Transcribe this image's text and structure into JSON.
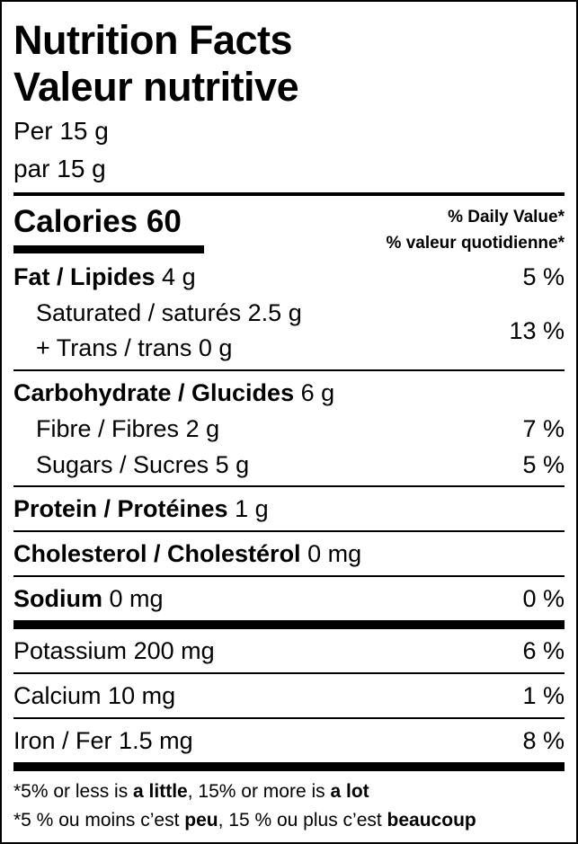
{
  "header": {
    "title_en": "Nutrition Facts",
    "title_fr": "Valeur nutritive",
    "serving_en": "Per 15 g",
    "serving_fr": "par 15 g"
  },
  "calories": {
    "label": "Calories",
    "value": "60"
  },
  "daily_value": {
    "en": "% Daily Value*",
    "fr": "% valeur quotidienne*"
  },
  "nutrients": {
    "fat": {
      "label": "Fat / Lipides",
      "amount": "4 g",
      "dv": "5 %"
    },
    "saturated": {
      "label": "Saturated / saturés",
      "amount": "2.5 g"
    },
    "trans": {
      "label": "+ Trans / trans",
      "amount": "0 g",
      "dv": "13 %"
    },
    "carbohydrate": {
      "label": "Carbohydrate / Glucides",
      "amount": "6 g"
    },
    "fibre": {
      "label": "Fibre / Fibres",
      "amount": "2 g",
      "dv": "7 %"
    },
    "sugars": {
      "label": "Sugars / Sucres",
      "amount": "5 g",
      "dv": "5 %"
    },
    "protein": {
      "label": "Protein / Protéines",
      "amount": "1 g"
    },
    "cholesterol": {
      "label": "Cholesterol / Cholestérol",
      "amount": "0 mg"
    },
    "sodium": {
      "label": "Sodium",
      "amount": "0 mg",
      "dv": "0 %"
    },
    "potassium": {
      "label": "Potassium",
      "amount": "200 mg",
      "dv": "6 %"
    },
    "calcium": {
      "label": "Calcium",
      "amount": "10 mg",
      "dv": "1 %"
    },
    "iron": {
      "label": "Iron / Fer",
      "amount": "1.5 mg",
      "dv": "8 %"
    }
  },
  "footnote": {
    "en_1": "*5% or less is ",
    "en_2": "a little",
    "en_3": ", 15% or more is ",
    "en_4": "a lot",
    "fr_1": "*5 % ou moins c’est ",
    "fr_2": "peu",
    "fr_3": ", 15 % ou plus c’est ",
    "fr_4": "beaucoup"
  }
}
